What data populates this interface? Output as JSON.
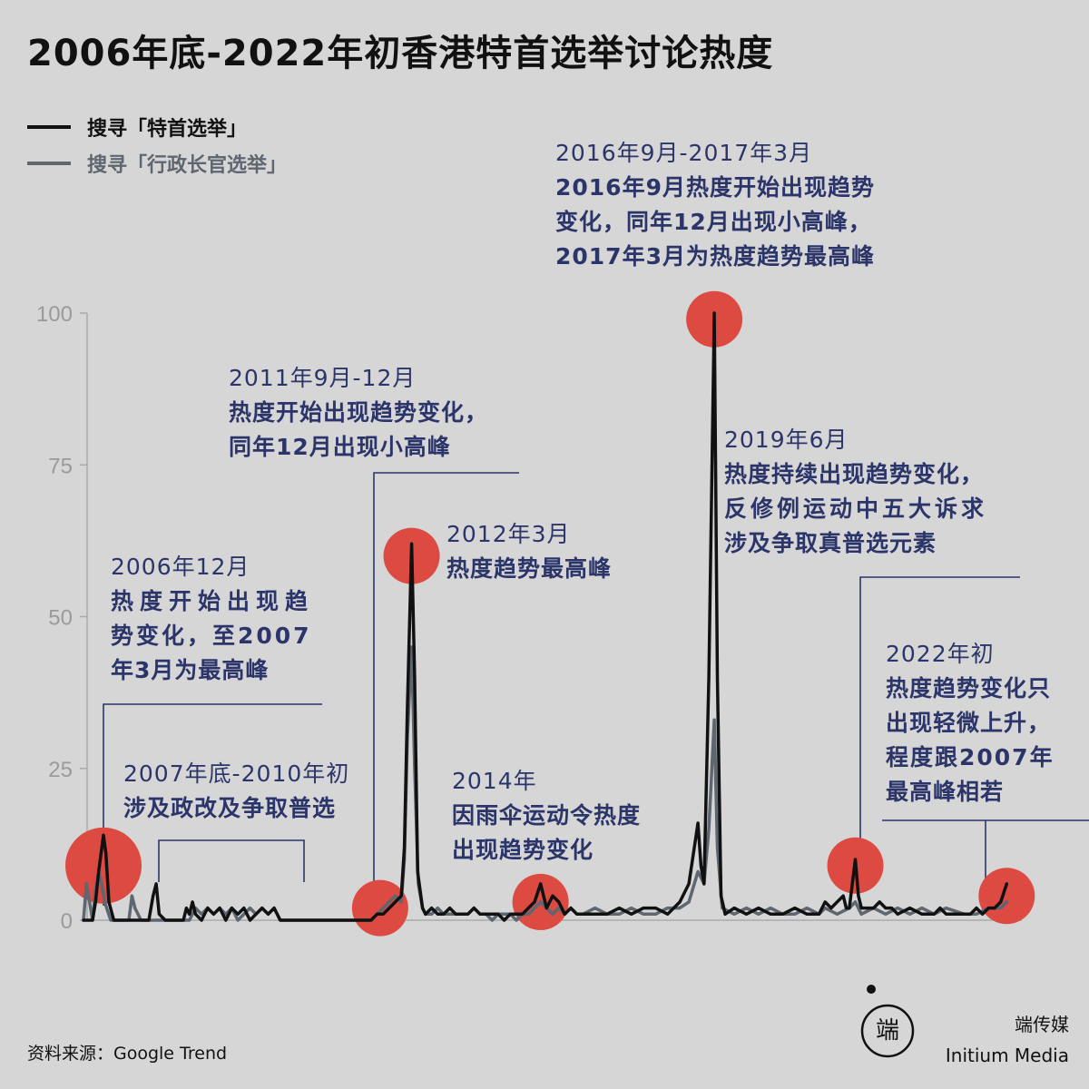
{
  "title": "2006年底-2022年初香港特首选举讨论热度",
  "legend": [
    {
      "label": "搜寻「特首选举」",
      "color": "#111111"
    },
    {
      "label": "搜寻「行政长官选举」",
      "color": "#5e6670"
    }
  ],
  "chart_data": {
    "type": "line",
    "yticks": [
      0,
      25,
      50,
      75,
      100
    ],
    "ylim": [
      0,
      100
    ],
    "xlim": [
      2006.75,
      2022.25
    ],
    "grid": false,
    "legend_position": "top-left",
    "series": [
      {
        "name": "搜寻「特首选举」",
        "color": "#111111",
        "points": [
          [
            2006.75,
            0
          ],
          [
            2006.9,
            0
          ],
          [
            2006.95,
            3
          ],
          [
            2007.0,
            8
          ],
          [
            2007.08,
            14
          ],
          [
            2007.12,
            11
          ],
          [
            2007.17,
            3
          ],
          [
            2007.25,
            0
          ],
          [
            2007.5,
            0
          ],
          [
            2007.83,
            0
          ],
          [
            2007.9,
            4
          ],
          [
            2007.95,
            6
          ],
          [
            2008.0,
            1
          ],
          [
            2008.1,
            0
          ],
          [
            2008.4,
            0
          ],
          [
            2008.45,
            2
          ],
          [
            2008.5,
            1
          ],
          [
            2008.55,
            3
          ],
          [
            2008.6,
            1
          ],
          [
            2008.7,
            0
          ],
          [
            2008.8,
            2
          ],
          [
            2008.9,
            1
          ],
          [
            2009.0,
            2
          ],
          [
            2009.1,
            0
          ],
          [
            2009.2,
            2
          ],
          [
            2009.3,
            1
          ],
          [
            2009.4,
            2
          ],
          [
            2009.5,
            0
          ],
          [
            2009.6,
            1
          ],
          [
            2009.7,
            2
          ],
          [
            2009.8,
            1
          ],
          [
            2009.9,
            2
          ],
          [
            2010.0,
            0
          ],
          [
            2010.5,
            0
          ],
          [
            2011.0,
            0
          ],
          [
            2011.5,
            0
          ],
          [
            2011.6,
            1
          ],
          [
            2011.7,
            1
          ],
          [
            2011.8,
            2
          ],
          [
            2011.9,
            3
          ],
          [
            2012.0,
            4
          ],
          [
            2012.05,
            12
          ],
          [
            2012.1,
            35
          ],
          [
            2012.17,
            62
          ],
          [
            2012.22,
            40
          ],
          [
            2012.27,
            8
          ],
          [
            2012.35,
            2
          ],
          [
            2012.4,
            1
          ],
          [
            2012.5,
            2
          ],
          [
            2012.6,
            1
          ],
          [
            2012.7,
            1
          ],
          [
            2012.8,
            2
          ],
          [
            2012.9,
            1
          ],
          [
            2013.0,
            1
          ],
          [
            2013.1,
            1
          ],
          [
            2013.2,
            2
          ],
          [
            2013.3,
            1
          ],
          [
            2013.4,
            1
          ],
          [
            2013.5,
            1
          ],
          [
            2013.6,
            1
          ],
          [
            2013.7,
            0
          ],
          [
            2013.8,
            1
          ],
          [
            2013.9,
            1
          ],
          [
            2014.0,
            1
          ],
          [
            2014.1,
            2
          ],
          [
            2014.2,
            3
          ],
          [
            2014.3,
            6
          ],
          [
            2014.4,
            2
          ],
          [
            2014.5,
            4
          ],
          [
            2014.6,
            3
          ],
          [
            2014.7,
            1
          ],
          [
            2014.8,
            2
          ],
          [
            2014.9,
            1
          ],
          [
            2015.0,
            1
          ],
          [
            2015.2,
            1
          ],
          [
            2015.4,
            1
          ],
          [
            2015.6,
            2
          ],
          [
            2015.8,
            1
          ],
          [
            2016.0,
            2
          ],
          [
            2016.2,
            2
          ],
          [
            2016.4,
            1
          ],
          [
            2016.6,
            3
          ],
          [
            2016.75,
            6
          ],
          [
            2016.9,
            16
          ],
          [
            2016.95,
            9
          ],
          [
            2017.0,
            6
          ],
          [
            2017.08,
            40
          ],
          [
            2017.17,
            100
          ],
          [
            2017.22,
            40
          ],
          [
            2017.28,
            4
          ],
          [
            2017.35,
            1
          ],
          [
            2017.5,
            2
          ],
          [
            2017.7,
            1
          ],
          [
            2017.9,
            2
          ],
          [
            2018.1,
            1
          ],
          [
            2018.3,
            1
          ],
          [
            2018.5,
            2
          ],
          [
            2018.7,
            1
          ],
          [
            2018.9,
            1
          ],
          [
            2019.0,
            3
          ],
          [
            2019.1,
            2
          ],
          [
            2019.2,
            3
          ],
          [
            2019.3,
            4
          ],
          [
            2019.35,
            2
          ],
          [
            2019.4,
            2
          ],
          [
            2019.45,
            6
          ],
          [
            2019.5,
            10
          ],
          [
            2019.55,
            4
          ],
          [
            2019.6,
            2
          ],
          [
            2019.7,
            2
          ],
          [
            2019.8,
            2
          ],
          [
            2019.9,
            3
          ],
          [
            2020.0,
            2
          ],
          [
            2020.1,
            2
          ],
          [
            2020.2,
            1
          ],
          [
            2020.4,
            2
          ],
          [
            2020.6,
            1
          ],
          [
            2020.8,
            1
          ],
          [
            2020.9,
            2
          ],
          [
            2021.0,
            1
          ],
          [
            2021.3,
            1
          ],
          [
            2021.4,
            1
          ],
          [
            2021.5,
            2
          ],
          [
            2021.6,
            1
          ],
          [
            2021.7,
            2
          ],
          [
            2021.8,
            2
          ],
          [
            2021.9,
            3
          ],
          [
            2022.0,
            6
          ]
        ]
      },
      {
        "name": "搜寻「行政长官选举」",
        "color": "#5e6670",
        "points": [
          [
            2006.75,
            0
          ],
          [
            2006.8,
            6
          ],
          [
            2006.85,
            3
          ],
          [
            2006.9,
            0
          ],
          [
            2006.95,
            5
          ],
          [
            2007.0,
            8
          ],
          [
            2007.05,
            6
          ],
          [
            2007.1,
            3
          ],
          [
            2007.2,
            0
          ],
          [
            2007.5,
            0
          ],
          [
            2007.55,
            4
          ],
          [
            2007.6,
            2
          ],
          [
            2007.7,
            0
          ],
          [
            2008.5,
            0
          ],
          [
            2008.6,
            2
          ],
          [
            2008.7,
            1
          ],
          [
            2008.8,
            2
          ],
          [
            2008.9,
            1
          ],
          [
            2009.0,
            2
          ],
          [
            2009.1,
            1
          ],
          [
            2009.2,
            2
          ],
          [
            2009.3,
            0
          ],
          [
            2009.4,
            1
          ],
          [
            2009.5,
            2
          ],
          [
            2009.6,
            1
          ],
          [
            2009.7,
            2
          ],
          [
            2009.8,
            1
          ],
          [
            2009.9,
            2
          ],
          [
            2010.0,
            0
          ],
          [
            2010.5,
            0
          ],
          [
            2011.0,
            0
          ],
          [
            2011.5,
            0
          ],
          [
            2011.6,
            1
          ],
          [
            2011.7,
            2
          ],
          [
            2011.8,
            3
          ],
          [
            2011.9,
            4
          ],
          [
            2012.0,
            3
          ],
          [
            2012.05,
            10
          ],
          [
            2012.1,
            30
          ],
          [
            2012.17,
            45
          ],
          [
            2012.22,
            25
          ],
          [
            2012.28,
            6
          ],
          [
            2012.35,
            2
          ],
          [
            2012.4,
            1
          ],
          [
            2012.5,
            1
          ],
          [
            2012.6,
            2
          ],
          [
            2012.7,
            1
          ],
          [
            2012.8,
            1
          ],
          [
            2012.9,
            1
          ],
          [
            2013.0,
            1
          ],
          [
            2013.1,
            1
          ],
          [
            2013.2,
            2
          ],
          [
            2013.3,
            1
          ],
          [
            2013.4,
            1
          ],
          [
            2013.5,
            0
          ],
          [
            2013.6,
            1
          ],
          [
            2013.7,
            1
          ],
          [
            2013.8,
            1
          ],
          [
            2013.9,
            0
          ],
          [
            2014.0,
            1
          ],
          [
            2014.1,
            1
          ],
          [
            2014.2,
            2
          ],
          [
            2014.3,
            3
          ],
          [
            2014.4,
            2
          ],
          [
            2014.5,
            1
          ],
          [
            2014.6,
            2
          ],
          [
            2014.7,
            1
          ],
          [
            2014.8,
            2
          ],
          [
            2014.9,
            1
          ],
          [
            2015.0,
            1
          ],
          [
            2015.2,
            2
          ],
          [
            2015.4,
            1
          ],
          [
            2015.6,
            1
          ],
          [
            2015.8,
            2
          ],
          [
            2016.0,
            1
          ],
          [
            2016.2,
            1
          ],
          [
            2016.4,
            2
          ],
          [
            2016.6,
            2
          ],
          [
            2016.75,
            3
          ],
          [
            2016.9,
            8
          ],
          [
            2017.0,
            6
          ],
          [
            2017.08,
            15
          ],
          [
            2017.17,
            33
          ],
          [
            2017.22,
            12
          ],
          [
            2017.3,
            2
          ],
          [
            2017.5,
            1
          ],
          [
            2017.7,
            2
          ],
          [
            2017.9,
            1
          ],
          [
            2018.1,
            2
          ],
          [
            2018.3,
            1
          ],
          [
            2018.5,
            1
          ],
          [
            2018.7,
            2
          ],
          [
            2018.9,
            1
          ],
          [
            2019.0,
            2
          ],
          [
            2019.2,
            1
          ],
          [
            2019.4,
            2
          ],
          [
            2019.5,
            3
          ],
          [
            2019.6,
            1
          ],
          [
            2019.8,
            2
          ],
          [
            2020.0,
            1
          ],
          [
            2020.2,
            2
          ],
          [
            2020.4,
            1
          ],
          [
            2020.6,
            2
          ],
          [
            2020.8,
            1
          ],
          [
            2021.0,
            2
          ],
          [
            2021.3,
            1
          ],
          [
            2021.5,
            1
          ],
          [
            2021.7,
            2
          ],
          [
            2021.9,
            2
          ],
          [
            2022.0,
            3
          ]
        ]
      }
    ],
    "highlights": [
      {
        "x": 2007.08,
        "y": 9
      },
      {
        "x": 2011.65,
        "y": 2
      },
      {
        "x": 2012.17,
        "y": 60
      },
      {
        "x": 2014.3,
        "y": 3
      },
      {
        "x": 2017.17,
        "y": 99
      },
      {
        "x": 2019.5,
        "y": 9
      },
      {
        "x": 2022.0,
        "y": 4
      }
    ]
  },
  "annotations": [
    {
      "date": "2006年12月",
      "lines": [
        "热度开始出现趋",
        "势变化，至2007",
        "年3月为最高峰"
      ]
    },
    {
      "date": "2007年底-2010年初",
      "lines": [
        "涉及政改及争取普选"
      ]
    },
    {
      "date": "2011年9月-12月",
      "lines": [
        "热度开始出现趋势变化，",
        "同年12月出现小高峰"
      ]
    },
    {
      "date": "2012年3月",
      "lines": [
        "热度趋势最高峰"
      ]
    },
    {
      "date": "2014年",
      "lines": [
        "因雨伞运动令热度",
        "出现趋势变化"
      ]
    },
    {
      "date": "2016年9月-2017年3月",
      "lines": [
        "2016年9月热度开始出现趋势",
        "变化，同年12月出现小高峰，",
        "2017年3月为热度趋势最高峰"
      ]
    },
    {
      "date": "2019年6月",
      "lines": [
        "热度持续出现趋势变化，",
        "反修例运动中五大诉求",
        "涉及争取真普选元素"
      ]
    },
    {
      "date": "2022年初",
      "lines": [
        "热度趋势变化只",
        "出现轻微上升，",
        "程度跟2007年",
        "最高峰相若"
      ]
    }
  ],
  "source": "资料来源：Google Trend",
  "brand": {
    "name_cn": "端传媒",
    "name_en": "Initium Media",
    "logo_text": "端"
  }
}
